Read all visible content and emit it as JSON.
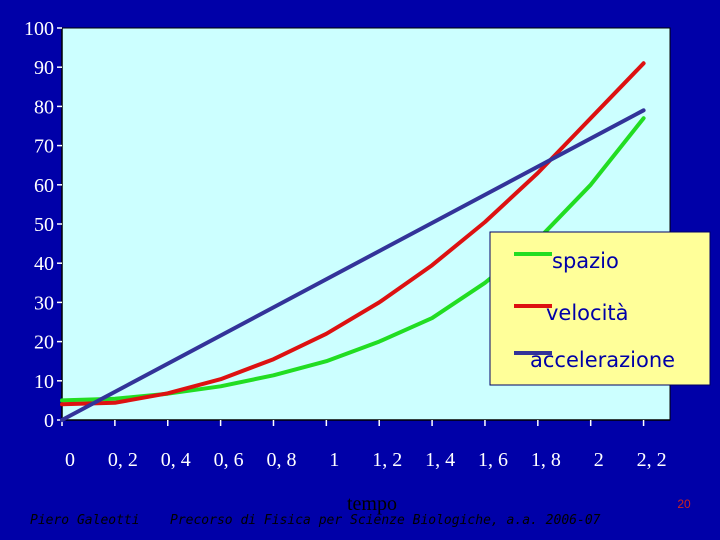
{
  "colors": {
    "slide_background": "#0000a8",
    "plot_background": "#ccffff",
    "legend_background": "#ffff99",
    "spazio": "#22dd22",
    "velocita": "#dd1111",
    "accelerazione": "#333399"
  },
  "chart_data": {
    "type": "line",
    "xlabel": "tempo",
    "ylabel": "",
    "title": "",
    "xlim": [
      0,
      2.3
    ],
    "ylim": [
      0,
      100
    ],
    "x_ticks": [
      0,
      0.2,
      0.4,
      0.6,
      0.8,
      1,
      1.2,
      1.4,
      1.6,
      1.8,
      2,
      2.2
    ],
    "x_tick_labels": [
      "0",
      "0, 2",
      "0, 4",
      "0, 6",
      "0, 8",
      "1",
      "1, 2",
      "1, 4",
      "1, 6",
      "1, 8",
      "2",
      "2, 2"
    ],
    "y_ticks": [
      0,
      10,
      20,
      30,
      40,
      50,
      60,
      70,
      80,
      90,
      100
    ],
    "y_tick_labels": [
      "0",
      "10",
      "20",
      "30",
      "40",
      "50",
      "60",
      "70",
      "80",
      "90",
      "100"
    ],
    "grid": false,
    "legend_position": "right",
    "series": [
      {
        "name": "spazio",
        "color_key": "spazio",
        "x": [
          0,
          0.2,
          0.4,
          0.6,
          0.8,
          1.0,
          1.2,
          1.4,
          1.6,
          1.8,
          2.0,
          2.2
        ],
        "y": [
          5,
          5.4,
          6.7,
          8.6,
          11.4,
          15,
          20,
          26,
          35,
          46,
          60,
          77
        ]
      },
      {
        "name": "velocità",
        "color_key": "velocita",
        "x": [
          0,
          0.2,
          0.4,
          0.6,
          0.8,
          1.0,
          1.2,
          1.4,
          1.6,
          1.8,
          2.0,
          2.2
        ],
        "y": [
          4,
          4.4,
          6.8,
          10.4,
          15.5,
          22,
          30,
          39.5,
          50.5,
          63,
          77,
          91
        ]
      },
      {
        "name": "accelerazione",
        "color_key": "accelerazione",
        "x": [
          0,
          2.2
        ],
        "y": [
          0,
          79
        ]
      }
    ]
  },
  "footer": {
    "author": "Piero Galeotti",
    "course": "Precorso di Fisica per Scienze Biologiche, a.a. 2006-07",
    "page_number": "20"
  }
}
